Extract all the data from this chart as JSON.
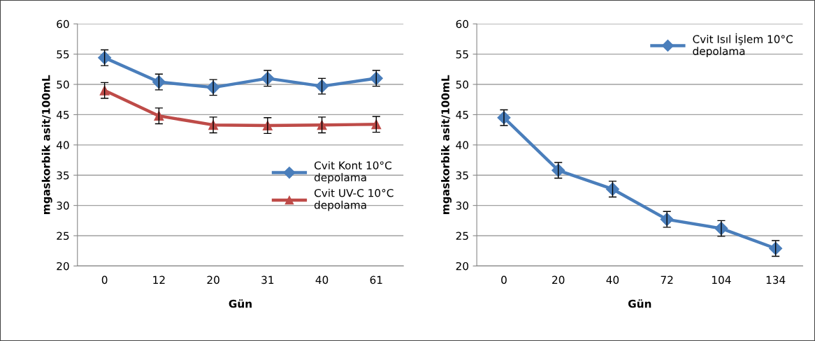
{
  "chart_data": [
    {
      "type": "line",
      "xlabel": "Gün",
      "ylabel": "mgaskorbik asit/100mL",
      "categories": [
        "0",
        "12",
        "20",
        "31",
        "40",
        "61"
      ],
      "ylim": [
        20,
        60
      ],
      "yticks": [
        20,
        25,
        30,
        35,
        40,
        45,
        50,
        55,
        60
      ],
      "grid": "y",
      "legend": "right",
      "line_style": "solid",
      "series": [
        {
          "name": "Cvit Kont 10°C\ndepolama",
          "color": "#4a7ebb",
          "marker": "diamond",
          "values": [
            54.4,
            50.4,
            49.5,
            51.0,
            49.7,
            51.0
          ],
          "errors": [
            1.3,
            1.3,
            1.3,
            1.3,
            1.3,
            1.3
          ]
        },
        {
          "name": "Cvit UV-C 10°C\ndepolama",
          "color": "#be4b48",
          "marker": "triangle",
          "values": [
            49.0,
            44.8,
            43.3,
            43.2,
            43.3,
            43.4
          ],
          "errors": [
            1.3,
            1.3,
            1.3,
            1.3,
            1.3,
            1.3
          ]
        }
      ]
    },
    {
      "type": "line",
      "xlabel": "Gün",
      "ylabel": "mgaskorbik asit/100mL",
      "categories": [
        "0",
        "20",
        "40",
        "72",
        "104",
        "134"
      ],
      "ylim": [
        20,
        60
      ],
      "yticks": [
        20,
        25,
        30,
        35,
        40,
        45,
        50,
        55,
        60
      ],
      "grid": "y",
      "legend": "top right",
      "line_style": "solid",
      "series": [
        {
          "name": "Cvit Isıl İşlem 10°C\ndepolama",
          "color": "#4a7ebb",
          "marker": "diamond",
          "values": [
            44.5,
            35.8,
            32.7,
            27.7,
            26.2,
            22.9
          ],
          "errors": [
            1.3,
            1.3,
            1.3,
            1.3,
            1.3,
            1.3
          ]
        }
      ]
    }
  ]
}
